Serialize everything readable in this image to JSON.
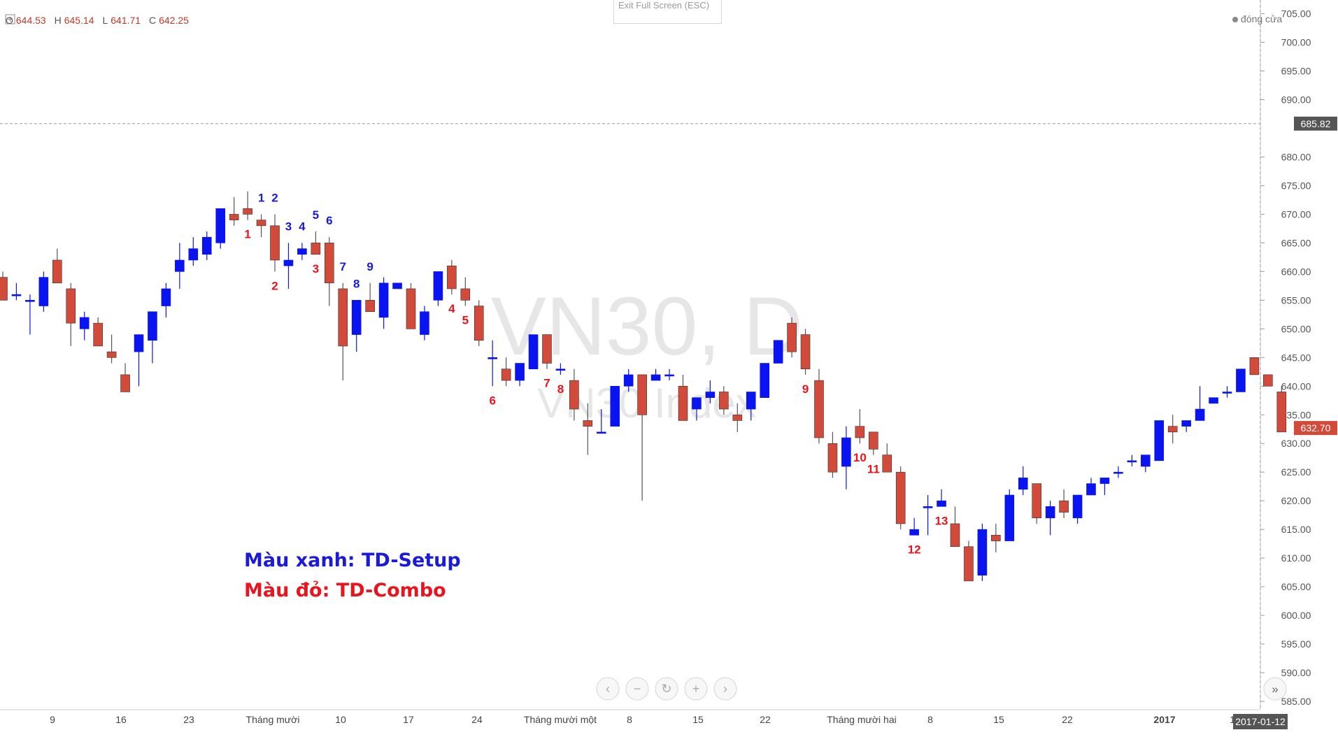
{
  "exit_fullscreen": "Exit Full Screen (ESC)",
  "ohlc": {
    "o_label": "O",
    "o_value": "644.53",
    "h_label": "H",
    "h_value": "645.14",
    "l_label": "L",
    "l_value": "641.71",
    "c_label": "C",
    "c_value": "642.25"
  },
  "close_legend": "đóng cửa",
  "watermark": {
    "title": "VN30, D",
    "subtitle": "VN30 Index"
  },
  "legend_notes": {
    "setup": "Màu xanh: TD-Setup",
    "combo": "Màu đỏ: TD-Combo"
  },
  "colors": {
    "up": "#0a14f0",
    "down": "#d24a3a",
    "setup_text": "#1a1ad8",
    "combo_text": "#e8141e",
    "price_tag": "#d24a3a",
    "crosshair_tag": "#555555"
  },
  "chart_data": {
    "type": "candlestick",
    "title": "VN30, D",
    "subtitle": "VN30 Index",
    "ylim": [
      583,
      707
    ],
    "y_ticks": [
      "585.00",
      "590.00",
      "595.00",
      "600.00",
      "605.00",
      "610.00",
      "615.00",
      "620.00",
      "625.00",
      "630.00",
      "635.00",
      "640.00",
      "645.00",
      "650.00",
      "655.00",
      "660.00",
      "665.00",
      "670.00",
      "675.00",
      "680.00",
      "690.00",
      "695.00",
      "700.00",
      "705.00"
    ],
    "x_ticks": [
      "9",
      "16",
      "23",
      "Tháng mười",
      "10",
      "17",
      "24",
      "Tháng mười một",
      "8",
      "15",
      "22",
      "Tháng mười hai",
      "8",
      "15",
      "22",
      "2017",
      "1"
    ],
    "last_price": "632.70",
    "crosshair_price": "685.82",
    "crosshair_date": "2017-01-12",
    "candles": [
      {
        "o": 659,
        "h": 660,
        "l": 655,
        "c": 655
      },
      {
        "o": 656,
        "h": 658,
        "l": 655,
        "c": 656
      },
      {
        "o": 655,
        "h": 656,
        "l": 649,
        "c": 655
      },
      {
        "o": 654,
        "h": 660,
        "l": 653,
        "c": 659
      },
      {
        "o": 662,
        "h": 664,
        "l": 658,
        "c": 658
      },
      {
        "o": 657,
        "h": 658,
        "l": 647,
        "c": 651
      },
      {
        "o": 650,
        "h": 653,
        "l": 648,
        "c": 652
      },
      {
        "o": 651,
        "h": 652,
        "l": 647,
        "c": 647
      },
      {
        "o": 646,
        "h": 649,
        "l": 644,
        "c": 645
      },
      {
        "o": 642,
        "h": 644,
        "l": 639,
        "c": 639
      },
      {
        "o": 646,
        "h": 649,
        "l": 640,
        "c": 649
      },
      {
        "o": 648,
        "h": 653,
        "l": 644,
        "c": 653
      },
      {
        "o": 654,
        "h": 658,
        "l": 652,
        "c": 657
      },
      {
        "o": 660,
        "h": 665,
        "l": 657,
        "c": 662
      },
      {
        "o": 662,
        "h": 666,
        "l": 661,
        "c": 664
      },
      {
        "o": 663,
        "h": 667,
        "l": 662,
        "c": 666
      },
      {
        "o": 665,
        "h": 671,
        "l": 664,
        "c": 671
      },
      {
        "o": 670,
        "h": 673,
        "l": 668,
        "c": 669
      },
      {
        "o": 671,
        "h": 674,
        "l": 669,
        "c": 670
      },
      {
        "o": 669,
        "h": 670,
        "l": 666,
        "c": 668
      },
      {
        "o": 668,
        "h": 670,
        "l": 660,
        "c": 662
      },
      {
        "o": 661,
        "h": 665,
        "l": 657,
        "c": 662
      },
      {
        "o": 663,
        "h": 665,
        "l": 662,
        "c": 664
      },
      {
        "o": 665,
        "h": 667,
        "l": 663,
        "c": 663
      },
      {
        "o": 665,
        "h": 666,
        "l": 654,
        "c": 658
      },
      {
        "o": 657,
        "h": 658,
        "l": 641,
        "c": 647
      },
      {
        "o": 649,
        "h": 655,
        "l": 646,
        "c": 655
      },
      {
        "o": 655,
        "h": 658,
        "l": 653,
        "c": 653
      },
      {
        "o": 652,
        "h": 659,
        "l": 650,
        "c": 658
      },
      {
        "o": 657,
        "h": 658,
        "l": 657,
        "c": 658
      },
      {
        "o": 657,
        "h": 658,
        "l": 650,
        "c": 650
      },
      {
        "o": 649,
        "h": 654,
        "l": 648,
        "c": 653
      },
      {
        "o": 655,
        "h": 660,
        "l": 654,
        "c": 660
      },
      {
        "o": 661,
        "h": 662,
        "l": 656,
        "c": 657
      },
      {
        "o": 657,
        "h": 659,
        "l": 654,
        "c": 655
      },
      {
        "o": 654,
        "h": 655,
        "l": 647,
        "c": 648
      },
      {
        "o": 645,
        "h": 648,
        "l": 640,
        "c": 645
      },
      {
        "o": 643,
        "h": 645,
        "l": 640,
        "c": 641
      },
      {
        "o": 641,
        "h": 643,
        "l": 640,
        "c": 644
      },
      {
        "o": 643,
        "h": 649,
        "l": 643,
        "c": 649
      },
      {
        "o": 649,
        "h": 649,
        "l": 643,
        "c": 644
      },
      {
        "o": 643,
        "h": 644,
        "l": 642,
        "c": 643
      },
      {
        "o": 641,
        "h": 643,
        "l": 634,
        "c": 636
      },
      {
        "o": 634,
        "h": 637,
        "l": 628,
        "c": 633
      },
      {
        "o": 632,
        "h": 636,
        "l": 632,
        "c": 632
      },
      {
        "o": 633,
        "h": 640,
        "l": 633,
        "c": 640
      },
      {
        "o": 640,
        "h": 643,
        "l": 639,
        "c": 642
      },
      {
        "o": 642,
        "h": 642,
        "l": 620,
        "c": 635
      },
      {
        "o": 641,
        "h": 643,
        "l": 641,
        "c": 642
      },
      {
        "o": 642,
        "h": 643,
        "l": 641,
        "c": 642
      },
      {
        "o": 640,
        "h": 642,
        "l": 634,
        "c": 634
      },
      {
        "o": 636,
        "h": 637,
        "l": 634,
        "c": 638
      },
      {
        "o": 638,
        "h": 641,
        "l": 637,
        "c": 639
      },
      {
        "o": 639,
        "h": 640,
        "l": 635,
        "c": 636
      },
      {
        "o": 635,
        "h": 637,
        "l": 632,
        "c": 634
      },
      {
        "o": 636,
        "h": 639,
        "l": 634,
        "c": 639
      },
      {
        "o": 638,
        "h": 644,
        "l": 638,
        "c": 644
      },
      {
        "o": 644,
        "h": 648,
        "l": 644,
        "c": 648
      },
      {
        "o": 651,
        "h": 652,
        "l": 645,
        "c": 646
      },
      {
        "o": 649,
        "h": 650,
        "l": 642,
        "c": 643
      },
      {
        "o": 641,
        "h": 643,
        "l": 630,
        "c": 631
      },
      {
        "o": 630,
        "h": 632,
        "l": 624,
        "c": 625
      },
      {
        "o": 626,
        "h": 633,
        "l": 622,
        "c": 631
      },
      {
        "o": 633,
        "h": 636,
        "l": 630,
        "c": 631
      },
      {
        "o": 632,
        "h": 632,
        "l": 628,
        "c": 629
      },
      {
        "o": 628,
        "h": 630,
        "l": 625,
        "c": 625
      },
      {
        "o": 625,
        "h": 626,
        "l": 615,
        "c": 616
      },
      {
        "o": 614,
        "h": 617,
        "l": 614,
        "c": 615
      },
      {
        "o": 619,
        "h": 621,
        "l": 614,
        "c": 619
      },
      {
        "o": 619,
        "h": 622,
        "l": 619,
        "c": 620
      },
      {
        "o": 616,
        "h": 619,
        "l": 612,
        "c": 612
      },
      {
        "o": 612,
        "h": 613,
        "l": 606,
        "c": 606
      },
      {
        "o": 607,
        "h": 616,
        "l": 606,
        "c": 615
      },
      {
        "o": 614,
        "h": 616,
        "l": 611,
        "c": 613
      },
      {
        "o": 613,
        "h": 622,
        "l": 613,
        "c": 621
      },
      {
        "o": 622,
        "h": 626,
        "l": 621,
        "c": 624
      },
      {
        "o": 623,
        "h": 623,
        "l": 616,
        "c": 617
      },
      {
        "o": 617,
        "h": 620,
        "l": 614,
        "c": 619
      },
      {
        "o": 620,
        "h": 622,
        "l": 617,
        "c": 618
      },
      {
        "o": 617,
        "h": 621,
        "l": 616,
        "c": 621
      },
      {
        "o": 621,
        "h": 624,
        "l": 621,
        "c": 623
      },
      {
        "o": 623,
        "h": 624,
        "l": 621,
        "c": 624
      },
      {
        "o": 625,
        "h": 626,
        "l": 624,
        "c": 625
      },
      {
        "o": 627,
        "h": 628,
        "l": 626,
        "c": 627
      },
      {
        "o": 626,
        "h": 628,
        "l": 625,
        "c": 628
      },
      {
        "o": 627,
        "h": 634,
        "l": 627,
        "c": 634
      },
      {
        "o": 633,
        "h": 635,
        "l": 630,
        "c": 632
      },
      {
        "o": 633,
        "h": 634,
        "l": 632,
        "c": 634
      },
      {
        "o": 634,
        "h": 640,
        "l": 634,
        "c": 636
      },
      {
        "o": 637,
        "h": 638,
        "l": 637,
        "c": 638
      },
      {
        "o": 639,
        "h": 640,
        "l": 638,
        "c": 639
      },
      {
        "o": 639,
        "h": 643,
        "l": 639,
        "c": 643
      },
      {
        "o": 645,
        "h": 645,
        "l": 642,
        "c": 642
      },
      {
        "o": 642,
        "h": 642,
        "l": 640,
        "c": 640
      },
      {
        "o": 639,
        "h": 640,
        "l": 632,
        "c": 632
      }
    ],
    "setup_labels": [
      {
        "text": "1",
        "index": 19
      },
      {
        "text": "2",
        "index": 20
      },
      {
        "text": "3",
        "index": 21
      },
      {
        "text": "4",
        "index": 22
      },
      {
        "text": "5",
        "index": 23
      },
      {
        "text": "6",
        "index": 24
      },
      {
        "text": "7",
        "index": 25
      },
      {
        "text": "8",
        "index": 26
      },
      {
        "text": "9",
        "index": 27
      }
    ],
    "combo_labels": [
      {
        "text": "1",
        "index": 18
      },
      {
        "text": "2",
        "index": 20
      },
      {
        "text": "3",
        "index": 23
      },
      {
        "text": "4",
        "index": 33
      },
      {
        "text": "5",
        "index": 34
      },
      {
        "text": "6",
        "index": 36
      },
      {
        "text": "7",
        "index": 40
      },
      {
        "text": "8",
        "index": 41
      },
      {
        "text": "9",
        "index": 59
      },
      {
        "text": "10",
        "index": 63
      },
      {
        "text": "11",
        "index": 64
      },
      {
        "text": "12",
        "index": 67
      },
      {
        "text": "13",
        "index": 69
      }
    ]
  }
}
